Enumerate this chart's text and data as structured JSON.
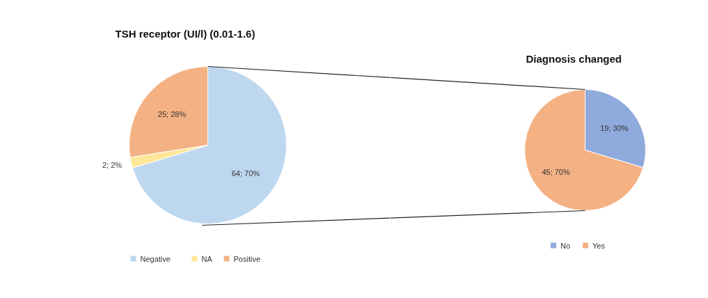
{
  "chart_data": [
    {
      "type": "pie",
      "title": "TSH receptor (UI/l) (0.01-1.6)",
      "categories": [
        "Negative",
        "NA",
        "Positive"
      ],
      "values": [
        64,
        2,
        25
      ],
      "colors": [
        "#bdd7ee",
        "#ffe699",
        "#f4b183"
      ],
      "value_labels": [
        "64; 70%",
        "2; 2%",
        "25; 28%"
      ],
      "legend": "bottom"
    },
    {
      "type": "pie",
      "title": "Diagnosis changed",
      "categories": [
        "No",
        "Yes"
      ],
      "values": [
        19,
        45
      ],
      "colors": [
        "#8faadc",
        "#f4b183"
      ],
      "value_labels": [
        "19; 30%",
        "45; 70%"
      ],
      "legend": "bottom"
    }
  ]
}
